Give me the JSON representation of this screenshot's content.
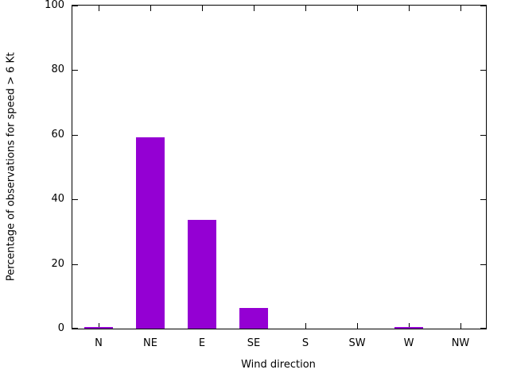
{
  "chart_data": {
    "type": "bar",
    "categories": [
      "N",
      "NE",
      "E",
      "SE",
      "S",
      "SW",
      "W",
      "NW"
    ],
    "values": [
      0.4,
      59.3,
      33.7,
      6.3,
      0,
      0,
      0.4,
      0
    ],
    "title": "",
    "xlabel": "Wind direction",
    "ylabel": "Percentage of observations for speed > 6 Kt",
    "ylim": [
      0,
      100
    ],
    "ytick_step": 20,
    "ytick_labels": [
      "0",
      "20",
      "40",
      "60",
      "80",
      "100"
    ],
    "bar_color": "#9400d3",
    "axis_color": "#000000",
    "grid": false,
    "legend_position": "none"
  }
}
